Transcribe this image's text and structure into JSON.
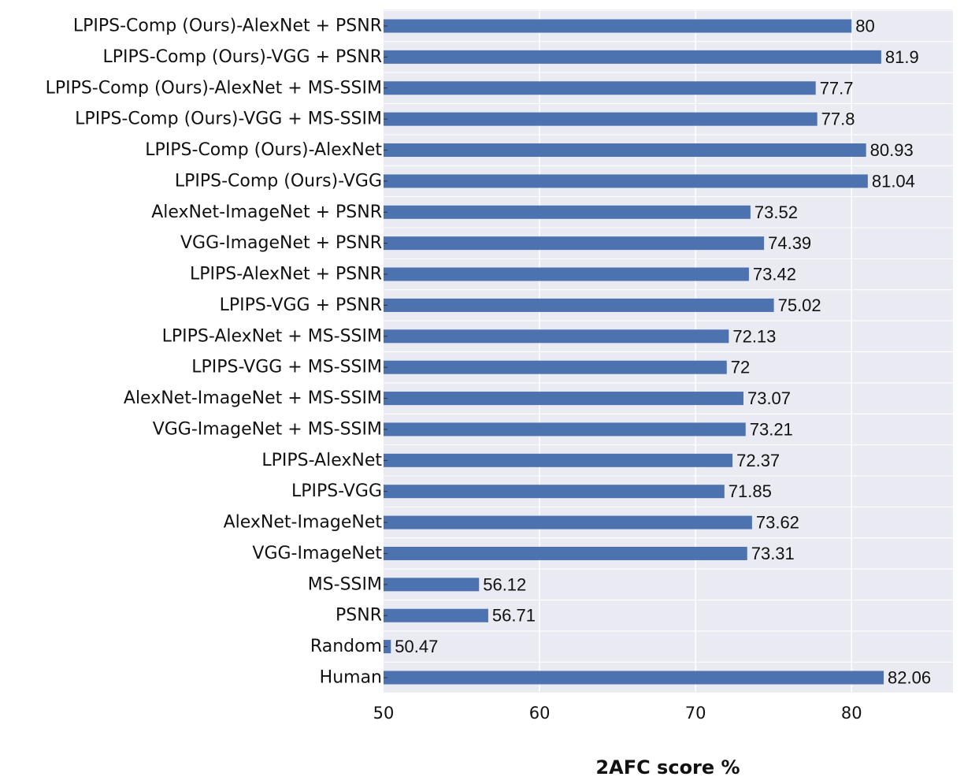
{
  "chart_data": {
    "type": "bar",
    "orientation": "horizontal",
    "xlabel": "2AFC score %",
    "ylabel": "",
    "xlim": [
      50,
      86.5
    ],
    "xticks": [
      50,
      60,
      70,
      80
    ],
    "grid": true,
    "colors": {
      "bar": "#4c72b0",
      "plot_background": "#e9eaf2",
      "grid": "#ffffff"
    },
    "categories": [
      "LPIPS-Comp (Ours)-AlexNet + PSNR",
      "LPIPS-Comp (Ours)-VGG + PSNR",
      "LPIPS-Comp (Ours)-AlexNet + MS-SSIM",
      "LPIPS-Comp (Ours)-VGG + MS-SSIM",
      "LPIPS-Comp (Ours)-AlexNet",
      "LPIPS-Comp (Ours)-VGG",
      "AlexNet-ImageNet + PSNR",
      "VGG-ImageNet + PSNR",
      "LPIPS-AlexNet + PSNR",
      "LPIPS-VGG + PSNR",
      "LPIPS-AlexNet + MS-SSIM",
      "LPIPS-VGG + MS-SSIM",
      "AlexNet-ImageNet + MS-SSIM",
      "VGG-ImageNet + MS-SSIM",
      "LPIPS-AlexNet",
      "LPIPS-VGG",
      "AlexNet-ImageNet",
      "VGG-ImageNet",
      "MS-SSIM",
      "PSNR",
      "Random",
      "Human"
    ],
    "values": [
      80,
      81.9,
      77.7,
      77.8,
      80.93,
      81.04,
      73.52,
      74.39,
      73.42,
      75.02,
      72.13,
      72,
      73.07,
      73.21,
      72.37,
      71.85,
      73.62,
      73.31,
      56.12,
      56.71,
      50.47,
      82.06
    ],
    "value_labels": [
      "80",
      "81.9",
      "77.7",
      "77.8",
      "80.93",
      "81.04",
      "73.52",
      "74.39",
      "73.42",
      "75.02",
      "72.13",
      "72",
      "73.07",
      "73.21",
      "72.37",
      "71.85",
      "73.62",
      "73.31",
      "56.12",
      "56.71",
      "50.47",
      "82.06"
    ]
  }
}
